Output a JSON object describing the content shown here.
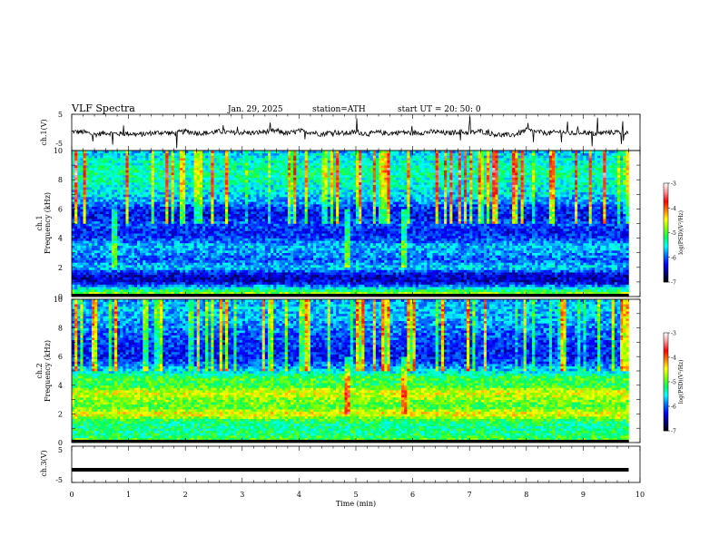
{
  "header": {
    "title": "VLF  Spectra",
    "date": "Jan. 29, 2025",
    "station": "station=ATH",
    "start": "start  UT  =   20: 50: 0"
  },
  "colors": {
    "colormap": [
      "#000000",
      "#00007a",
      "#0000ff",
      "#0070ff",
      "#00ffff",
      "#00ff60",
      "#80ff00",
      "#ffff00",
      "#ff8000",
      "#ff0000",
      "#ff9090",
      "#ffffff"
    ],
    "waveform": "#000000",
    "background": "#ffffff"
  },
  "chart_data": [
    {
      "type": "line",
      "ylabel": "ch.1(V)",
      "ylim": [
        -5,
        5
      ],
      "ytick_labels": [
        "5",
        "-5"
      ],
      "x": [
        0,
        0.2,
        0.4,
        0.6,
        0.8,
        1.0,
        1.2,
        1.4,
        1.6,
        1.8,
        2.0,
        2.2,
        2.4,
        2.6,
        2.8,
        3.0,
        3.2,
        3.4,
        3.6,
        3.8,
        4.0,
        4.2,
        4.4,
        4.6,
        4.8,
        5.0,
        5.2,
        5.4,
        5.6,
        5.8,
        6.0,
        6.2,
        6.4,
        6.6,
        6.8,
        7.0,
        7.2,
        7.4,
        7.6,
        7.8,
        8.0,
        8.2,
        8.4,
        8.6,
        8.8,
        9.0,
        9.2,
        9.4,
        9.6,
        9.8
      ],
      "values": [
        0.2,
        0.1,
        -0.6,
        -0.1,
        -0.4,
        -0.3,
        -0.6,
        -0.2,
        0.0,
        -0.3,
        0.3,
        -0.1,
        -0.2,
        0.3,
        -0.1,
        0.0,
        -0.2,
        0.2,
        0.4,
        -0.3,
        0.4,
        0.1,
        -0.5,
        0.2,
        -0.3,
        0.1,
        -0.4,
        0.0,
        -0.3,
        0.1,
        -0.2,
        0.0,
        0.2,
        -0.3,
        0.2,
        -0.1,
        0.3,
        -0.4,
        -0.8,
        -0.6,
        0.6,
        0.1,
        -0.2,
        0.2,
        -0.3,
        0.1,
        -0.4,
        0.0,
        0.1,
        0.0
      ]
    },
    {
      "type": "heatmap",
      "ylabel": "ch.1\nFrequency (kHz)",
      "ylim": [
        0,
        10
      ],
      "ytick_labels": [
        "0",
        "2",
        "4",
        "6",
        "8",
        "10"
      ],
      "colorbar_label": "log(PSD)(V²/Hz)",
      "colorbar_range": [
        -7,
        -3
      ],
      "colorbar_ticks": [
        "-3",
        "-4",
        "-5",
        "-6",
        "-7"
      ],
      "x_range": [
        0,
        9.8
      ],
      "frequency_profile_khz": [
        0.0,
        0.5,
        1.0,
        1.5,
        2.0,
        2.5,
        3.0,
        3.5,
        4.0,
        4.5,
        5.0,
        5.5,
        6.0,
        6.5,
        7.0,
        7.5,
        8.0,
        8.5,
        9.0,
        9.5,
        10.0
      ],
      "frequency_profile_logpsd": [
        -4.3,
        -5.4,
        -6.4,
        -6.4,
        -5.6,
        -6.0,
        -5.8,
        -5.7,
        -6.1,
        -6.2,
        -6.0,
        -6.3,
        -6.2,
        -5.8,
        -5.6,
        -5.5,
        -5.4,
        -5.3,
        -5.4,
        -5.5,
        -5.7
      ],
      "impulsive_noise": "broadband spikes above 5 kHz throughout the record",
      "events_min": [
        0.75,
        4.85,
        5.85
      ]
    },
    {
      "type": "heatmap",
      "ylabel": "ch.2\nFrequency (kHz)",
      "ylim": [
        0,
        10
      ],
      "ytick_labels": [
        "0",
        "2",
        "4",
        "6",
        "8",
        "10"
      ],
      "colorbar_label": "log(PSD)(V²/Hz)",
      "colorbar_range": [
        -7,
        -3
      ],
      "colorbar_ticks": [
        "-3",
        "-4",
        "-5",
        "-6",
        "-7"
      ],
      "x_range": [
        0,
        9.8
      ],
      "frequency_profile_khz": [
        0.0,
        0.5,
        1.0,
        1.5,
        2.0,
        2.5,
        3.0,
        3.5,
        4.0,
        4.5,
        5.0,
        5.5,
        6.0,
        6.5,
        7.0,
        7.5,
        8.0,
        8.5,
        9.0,
        9.5,
        10.0
      ],
      "frequency_profile_logpsd": [
        -4.8,
        -5.2,
        -5.3,
        -5.2,
        -4.4,
        -5.0,
        -4.8,
        -4.5,
        -5.1,
        -5.0,
        -5.6,
        -6.0,
        -6.2,
        -6.2,
        -6.1,
        -6.0,
        -5.9,
        -5.8,
        -5.7,
        -5.7,
        -5.8
      ],
      "impulsive_noise": "broadband spikes above 5 kHz throughout the record",
      "events_min": [
        4.85,
        5.85
      ]
    },
    {
      "type": "line",
      "ylabel": "ch.3(V)",
      "ylim": [
        -5,
        5
      ],
      "ytick_labels": [
        "5",
        "-5"
      ],
      "x": [
        0,
        9.8
      ],
      "values": [
        -1.5,
        -1.5
      ]
    }
  ],
  "xaxis": {
    "label": "Time  (min)",
    "ticks": [
      "0",
      "1",
      "2",
      "3",
      "4",
      "5",
      "6",
      "7",
      "8",
      "9",
      "10"
    ],
    "xlim": [
      0,
      10
    ]
  }
}
